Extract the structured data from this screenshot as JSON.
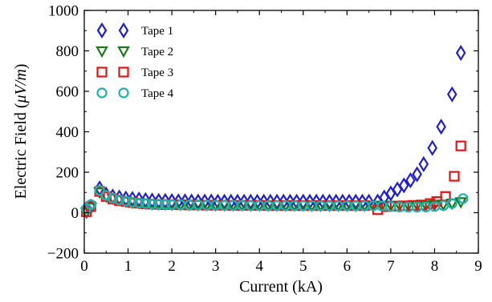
{
  "chart_data": {
    "type": "scatter",
    "xlabel": "Current (kA)",
    "ylabel": {
      "prefix": "Electric Field (",
      "mu": "μ",
      "unit": "V/m",
      "suffix": ")"
    },
    "xlim": [
      0,
      9
    ],
    "ylim": [
      -200,
      1000
    ],
    "x_ticks": [
      0,
      1,
      2,
      3,
      4,
      5,
      6,
      7,
      8,
      9
    ],
    "y_ticks": [
      -200,
      0,
      200,
      400,
      600,
      800,
      1000
    ],
    "x_tick_labels": [
      "0",
      "1",
      "2",
      "3",
      "4",
      "5",
      "6",
      "7",
      "8",
      "9"
    ],
    "y_tick_labels": [
      "−200",
      "0",
      "200",
      "400",
      "600",
      "800",
      "1000"
    ],
    "grid": false,
    "legend_position": "top-left",
    "series": [
      {
        "name": "Tape 1",
        "marker": "diamond",
        "color": "#1f1fcf",
        "points": [
          [
            0.05,
            10
          ],
          [
            0.15,
            30
          ],
          [
            0.35,
            120
          ],
          [
            0.5,
            90
          ],
          [
            0.65,
            80
          ],
          [
            0.8,
            75
          ],
          [
            0.95,
            70
          ],
          [
            1.1,
            68
          ],
          [
            1.25,
            65
          ],
          [
            1.4,
            62
          ],
          [
            1.55,
            60
          ],
          [
            1.7,
            58
          ],
          [
            1.85,
            58
          ],
          [
            2.0,
            57
          ],
          [
            2.15,
            56
          ],
          [
            2.3,
            56
          ],
          [
            2.45,
            55
          ],
          [
            2.6,
            55
          ],
          [
            2.75,
            55
          ],
          [
            2.9,
            55
          ],
          [
            3.05,
            54
          ],
          [
            3.2,
            54
          ],
          [
            3.35,
            54
          ],
          [
            3.5,
            54
          ],
          [
            3.65,
            54
          ],
          [
            3.8,
            54
          ],
          [
            3.95,
            54
          ],
          [
            4.1,
            54
          ],
          [
            4.25,
            54
          ],
          [
            4.4,
            54
          ],
          [
            4.55,
            54
          ],
          [
            4.7,
            54
          ],
          [
            4.85,
            54
          ],
          [
            5.0,
            54
          ],
          [
            5.15,
            54
          ],
          [
            5.3,
            54
          ],
          [
            5.45,
            54
          ],
          [
            5.6,
            54
          ],
          [
            5.75,
            54
          ],
          [
            5.9,
            54
          ],
          [
            6.05,
            54
          ],
          [
            6.2,
            54
          ],
          [
            6.35,
            54
          ],
          [
            6.5,
            54
          ],
          [
            6.7,
            55
          ],
          [
            6.85,
            75
          ],
          [
            7.0,
            95
          ],
          [
            7.15,
            115
          ],
          [
            7.3,
            135
          ],
          [
            7.45,
            160
          ],
          [
            7.6,
            190
          ],
          [
            7.75,
            240
          ],
          [
            7.95,
            320
          ],
          [
            8.15,
            425
          ],
          [
            8.4,
            585
          ],
          [
            8.6,
            790
          ]
        ]
      },
      {
        "name": "Tape 2",
        "marker": "triangle-down",
        "color": "#1a7a1a",
        "points": [
          [
            0.05,
            0
          ],
          [
            0.15,
            25
          ],
          [
            0.35,
            100
          ],
          [
            0.5,
            80
          ],
          [
            0.65,
            70
          ],
          [
            0.8,
            62
          ],
          [
            0.95,
            55
          ],
          [
            1.1,
            50
          ],
          [
            1.25,
            47
          ],
          [
            1.4,
            45
          ],
          [
            1.55,
            43
          ],
          [
            1.7,
            42
          ],
          [
            1.85,
            41
          ],
          [
            2.0,
            40
          ],
          [
            2.2,
            40
          ],
          [
            2.4,
            39
          ],
          [
            2.6,
            38
          ],
          [
            2.8,
            38
          ],
          [
            3.0,
            37
          ],
          [
            3.2,
            37
          ],
          [
            3.4,
            37
          ],
          [
            3.6,
            37
          ],
          [
            3.8,
            36
          ],
          [
            4.0,
            36
          ],
          [
            4.2,
            36
          ],
          [
            4.4,
            36
          ],
          [
            4.6,
            36
          ],
          [
            4.8,
            36
          ],
          [
            5.0,
            36
          ],
          [
            5.2,
            35
          ],
          [
            5.4,
            35
          ],
          [
            5.6,
            35
          ],
          [
            5.8,
            35
          ],
          [
            6.0,
            35
          ],
          [
            6.2,
            35
          ],
          [
            6.4,
            35
          ],
          [
            6.6,
            35
          ],
          [
            6.8,
            35
          ],
          [
            7.0,
            35
          ],
          [
            7.2,
            35
          ],
          [
            7.4,
            35
          ],
          [
            7.6,
            36
          ],
          [
            7.8,
            36
          ],
          [
            8.0,
            38
          ],
          [
            8.2,
            40
          ],
          [
            8.4,
            45
          ],
          [
            8.6,
            52
          ]
        ]
      },
      {
        "name": "Tape 3",
        "marker": "square",
        "color": "#e01515",
        "points": [
          [
            0.05,
            5
          ],
          [
            0.15,
            30
          ],
          [
            0.35,
            105
          ],
          [
            0.5,
            80
          ],
          [
            0.65,
            68
          ],
          [
            0.8,
            60
          ],
          [
            0.95,
            55
          ],
          [
            1.1,
            50
          ],
          [
            1.25,
            47
          ],
          [
            1.4,
            44
          ],
          [
            1.55,
            42
          ],
          [
            1.7,
            41
          ],
          [
            1.85,
            40
          ],
          [
            2.0,
            40
          ],
          [
            2.2,
            39
          ],
          [
            2.4,
            38
          ],
          [
            2.6,
            38
          ],
          [
            2.8,
            37
          ],
          [
            3.0,
            37
          ],
          [
            3.2,
            37
          ],
          [
            3.4,
            36
          ],
          [
            3.6,
            36
          ],
          [
            3.8,
            36
          ],
          [
            4.0,
            36
          ],
          [
            4.2,
            35
          ],
          [
            4.4,
            35
          ],
          [
            4.6,
            35
          ],
          [
            4.8,
            35
          ],
          [
            5.0,
            35
          ],
          [
            5.2,
            35
          ],
          [
            5.4,
            35
          ],
          [
            5.6,
            35
          ],
          [
            5.8,
            35
          ],
          [
            6.0,
            35
          ],
          [
            6.2,
            35
          ],
          [
            6.4,
            35
          ],
          [
            6.7,
            15
          ],
          [
            6.9,
            30
          ],
          [
            7.1,
            32
          ],
          [
            7.3,
            34
          ],
          [
            7.5,
            36
          ],
          [
            7.7,
            38
          ],
          [
            7.9,
            45
          ],
          [
            8.05,
            55
          ],
          [
            8.25,
            80
          ],
          [
            8.45,
            180
          ],
          [
            8.6,
            330
          ]
        ]
      },
      {
        "name": "Tape 4",
        "marker": "circle",
        "color": "#1fb2b2",
        "points": [
          [
            0.05,
            20
          ],
          [
            0.15,
            40
          ],
          [
            0.35,
            110
          ],
          [
            0.5,
            85
          ],
          [
            0.65,
            72
          ],
          [
            0.8,
            63
          ],
          [
            0.95,
            57
          ],
          [
            1.1,
            52
          ],
          [
            1.25,
            48
          ],
          [
            1.4,
            45
          ],
          [
            1.55,
            43
          ],
          [
            1.7,
            42
          ],
          [
            1.85,
            41
          ],
          [
            2.0,
            40
          ],
          [
            2.2,
            39
          ],
          [
            2.4,
            38
          ],
          [
            2.6,
            38
          ],
          [
            2.8,
            37
          ],
          [
            3.0,
            37
          ],
          [
            3.2,
            36
          ],
          [
            3.4,
            36
          ],
          [
            3.6,
            36
          ],
          [
            3.8,
            35
          ],
          [
            4.0,
            35
          ],
          [
            4.2,
            35
          ],
          [
            4.4,
            35
          ],
          [
            4.6,
            35
          ],
          [
            4.8,
            35
          ],
          [
            5.0,
            34
          ],
          [
            5.2,
            34
          ],
          [
            5.4,
            34
          ],
          [
            5.6,
            34
          ],
          [
            5.8,
            34
          ],
          [
            6.0,
            34
          ],
          [
            6.2,
            34
          ],
          [
            6.4,
            34
          ],
          [
            6.6,
            34
          ],
          [
            6.8,
            33
          ],
          [
            7.0,
            30
          ],
          [
            7.2,
            28
          ],
          [
            7.4,
            27
          ],
          [
            7.6,
            27
          ],
          [
            7.8,
            28
          ],
          [
            8.0,
            30
          ],
          [
            8.2,
            35
          ],
          [
            8.4,
            45
          ],
          [
            8.65,
            70
          ]
        ]
      }
    ]
  }
}
